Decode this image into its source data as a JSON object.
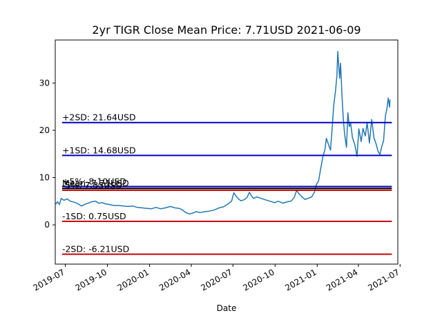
{
  "chart_data": {
    "type": "line",
    "title": "2yr TIGR Close Mean Price: 7.71USD 2021-06-09",
    "xlabel": "Date",
    "ylabel": "",
    "ylim": [
      -8.3,
      39.1
    ],
    "xlim": [
      "2019-06-09",
      "2021-06-26"
    ],
    "grid": false,
    "y_ticks": [
      0,
      10,
      20,
      30
    ],
    "x_ticks": [
      "2019-07",
      "2019-10",
      "2020-01",
      "2020-04",
      "2020-07",
      "2020-10",
      "2021-01",
      "2021-04",
      "2021-07"
    ],
    "series": [
      {
        "color": "#1f77b4",
        "points": [
          [
            "2019-06-10",
            4.4
          ],
          [
            "2019-06-14",
            4.9
          ],
          [
            "2019-06-18",
            4.3
          ],
          [
            "2019-06-22",
            5.6
          ],
          [
            "2019-06-28",
            5.2
          ],
          [
            "2019-07-05",
            5.5
          ],
          [
            "2019-07-12",
            5.0
          ],
          [
            "2019-07-20",
            4.8
          ],
          [
            "2019-07-28",
            4.5
          ],
          [
            "2019-08-05",
            4.0
          ],
          [
            "2019-08-12",
            4.3
          ],
          [
            "2019-08-20",
            4.6
          ],
          [
            "2019-08-28",
            4.9
          ],
          [
            "2019-09-05",
            5.0
          ],
          [
            "2019-09-12",
            4.6
          ],
          [
            "2019-09-20",
            4.7
          ],
          [
            "2019-09-28",
            4.4
          ],
          [
            "2019-10-06",
            4.3
          ],
          [
            "2019-10-15",
            4.1
          ],
          [
            "2019-10-25",
            4.1
          ],
          [
            "2019-11-05",
            4.0
          ],
          [
            "2019-11-15",
            3.9
          ],
          [
            "2019-11-25",
            4.0
          ],
          [
            "2019-12-05",
            3.7
          ],
          [
            "2019-12-15",
            3.6
          ],
          [
            "2019-12-25",
            3.5
          ],
          [
            "2020-01-05",
            3.4
          ],
          [
            "2020-01-15",
            3.7
          ],
          [
            "2020-01-25",
            3.4
          ],
          [
            "2020-02-05",
            3.6
          ],
          [
            "2020-02-15",
            3.9
          ],
          [
            "2020-02-25",
            3.6
          ],
          [
            "2020-03-05",
            3.5
          ],
          [
            "2020-03-12",
            3.2
          ],
          [
            "2020-03-20",
            2.6
          ],
          [
            "2020-03-28",
            2.3
          ],
          [
            "2020-04-05",
            2.5
          ],
          [
            "2020-04-12",
            2.8
          ],
          [
            "2020-04-20",
            2.6
          ],
          [
            "2020-05-01",
            2.8
          ],
          [
            "2020-05-10",
            2.9
          ],
          [
            "2020-05-20",
            3.1
          ],
          [
            "2020-06-01",
            3.6
          ],
          [
            "2020-06-10",
            3.8
          ],
          [
            "2020-06-20",
            4.4
          ],
          [
            "2020-06-28",
            5.0
          ],
          [
            "2020-07-03",
            6.8
          ],
          [
            "2020-07-07",
            6.2
          ],
          [
            "2020-07-12",
            5.6
          ],
          [
            "2020-07-18",
            5.1
          ],
          [
            "2020-07-25",
            5.3
          ],
          [
            "2020-08-01",
            5.8
          ],
          [
            "2020-08-06",
            6.9
          ],
          [
            "2020-08-10",
            6.2
          ],
          [
            "2020-08-15",
            5.6
          ],
          [
            "2020-08-22",
            5.9
          ],
          [
            "2020-09-01",
            5.6
          ],
          [
            "2020-09-10",
            5.3
          ],
          [
            "2020-09-20",
            5.0
          ],
          [
            "2020-09-30",
            4.7
          ],
          [
            "2020-10-08",
            5.0
          ],
          [
            "2020-10-18",
            4.6
          ],
          [
            "2020-10-28",
            4.9
          ],
          [
            "2020-11-05",
            5.0
          ],
          [
            "2020-11-12",
            5.8
          ],
          [
            "2020-11-17",
            7.3
          ],
          [
            "2020-11-22",
            6.6
          ],
          [
            "2020-11-28",
            6.0
          ],
          [
            "2020-12-05",
            5.4
          ],
          [
            "2020-12-12",
            5.6
          ],
          [
            "2020-12-20",
            5.9
          ],
          [
            "2020-12-26",
            6.9
          ],
          [
            "2020-12-30",
            8.5
          ],
          [
            "2021-01-04",
            9.3
          ],
          [
            "2021-01-08",
            11.5
          ],
          [
            "2021-01-13",
            14.3
          ],
          [
            "2021-01-18",
            16.0
          ],
          [
            "2021-01-21",
            18.3
          ],
          [
            "2021-01-26",
            16.9
          ],
          [
            "2021-01-30",
            15.8
          ],
          [
            "2021-02-02",
            19.5
          ],
          [
            "2021-02-06",
            25.3
          ],
          [
            "2021-02-10",
            28.3
          ],
          [
            "2021-02-13",
            31.5
          ],
          [
            "2021-02-15",
            36.7
          ],
          [
            "2021-02-17",
            33.6
          ],
          [
            "2021-02-19",
            31.0
          ],
          [
            "2021-02-21",
            34.2
          ],
          [
            "2021-02-24",
            27.5
          ],
          [
            "2021-02-27",
            22.4
          ],
          [
            "2021-03-02",
            19.0
          ],
          [
            "2021-03-06",
            16.4
          ],
          [
            "2021-03-09",
            23.7
          ],
          [
            "2021-03-12",
            20.8
          ],
          [
            "2021-03-15",
            21.5
          ],
          [
            "2021-03-19",
            18.4
          ],
          [
            "2021-03-24",
            17.0
          ],
          [
            "2021-03-29",
            14.5
          ],
          [
            "2021-04-02",
            20.3
          ],
          [
            "2021-04-07",
            17.6
          ],
          [
            "2021-04-11",
            20.4
          ],
          [
            "2021-04-16",
            18.8
          ],
          [
            "2021-04-20",
            21.6
          ],
          [
            "2021-04-25",
            17.3
          ],
          [
            "2021-04-30",
            22.3
          ],
          [
            "2021-05-05",
            18.4
          ],
          [
            "2021-05-10",
            17.0
          ],
          [
            "2021-05-14",
            15.5
          ],
          [
            "2021-05-18",
            14.9
          ],
          [
            "2021-05-22",
            16.6
          ],
          [
            "2021-05-26",
            17.8
          ],
          [
            "2021-05-30",
            23.1
          ],
          [
            "2021-06-02",
            24.4
          ],
          [
            "2021-06-05",
            26.8
          ],
          [
            "2021-06-08",
            24.9
          ],
          [
            "2021-06-09",
            26.5
          ]
        ]
      }
    ],
    "hlines": [
      {
        "label": "+2SD: 21.64USD",
        "value": 21.64,
        "color": "#0000bf"
      },
      {
        "label": "+1SD: 14.68USD",
        "value": 14.68,
        "color": "#0000bf"
      },
      {
        "label": "+5%: 8.10USD",
        "value": 8.1,
        "color": "#0000bf"
      },
      {
        "label": "Mean: 7.71USD",
        "value": 7.71,
        "color": "#000000"
      },
      {
        "label": "-5%: 7.33USD",
        "value": 7.33,
        "color": "#cc0000"
      },
      {
        "label": "-1SD: 0.75USD",
        "value": 0.75,
        "color": "#cc0000"
      },
      {
        "label": "-2SD: -6.21USD",
        "value": -6.21,
        "color": "#cc0000"
      }
    ]
  }
}
